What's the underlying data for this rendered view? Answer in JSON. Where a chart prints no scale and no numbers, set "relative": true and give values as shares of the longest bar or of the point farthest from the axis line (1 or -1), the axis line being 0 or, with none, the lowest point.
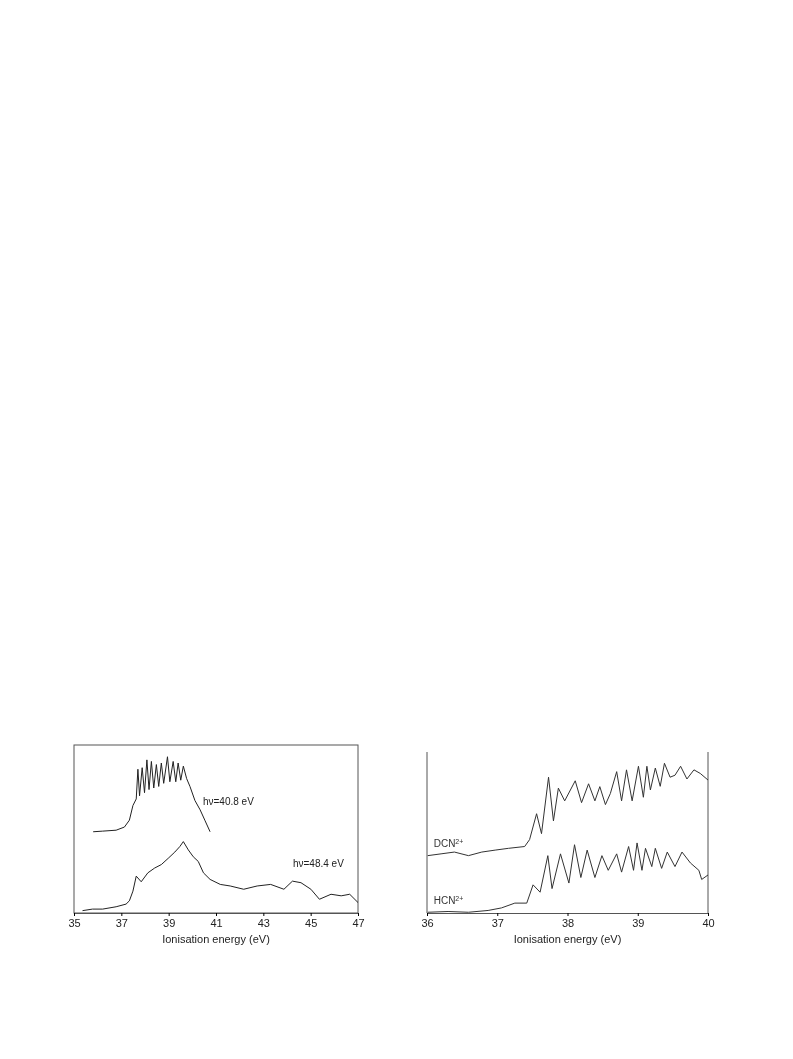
{
  "chart_data": [
    {
      "type": "line",
      "relative": true,
      "xlabel": "Ionisation energy (eV)",
      "xlim": [
        35,
        47
      ],
      "xticks": [
        35,
        37,
        39,
        41,
        43,
        45,
        47
      ],
      "grid": false,
      "legend": false,
      "line_style": "solid",
      "marker": "none",
      "series": [
        {
          "name": "hν=40.8 eV",
          "color": "#222222",
          "x": [
            35.81,
            36.21,
            36.78,
            37.13,
            37.34,
            37.49,
            37.63,
            37.7,
            37.77,
            37.88,
            37.98,
            38.08,
            38.17,
            38.27,
            38.37,
            38.48,
            38.58,
            38.69,
            38.79,
            38.95,
            39.05,
            39.19,
            39.3,
            39.4,
            39.51,
            39.62,
            39.76,
            39.9,
            40.11,
            40.33,
            40.54,
            40.75
          ],
          "values": [
            0.52,
            0.524,
            0.53,
            0.55,
            0.594,
            0.688,
            0.73,
            0.92,
            0.75,
            0.93,
            0.77,
            0.98,
            0.79,
            0.97,
            0.8,
            0.95,
            0.81,
            0.96,
            0.83,
            1.0,
            0.84,
            0.97,
            0.84,
            0.96,
            0.85,
            0.94,
            0.86,
            0.81,
            0.72,
            0.66,
            0.59,
            0.52
          ]
        },
        {
          "name": "hν=48.4 eV",
          "color": "#222222",
          "x": [
            35.36,
            35.78,
            36.21,
            36.78,
            37.2,
            37.34,
            37.49,
            37.63,
            37.84,
            38.12,
            38.41,
            38.69,
            38.98,
            39.26,
            39.47,
            39.62,
            39.83,
            40.04,
            40.25,
            40.47,
            40.75,
            41.18,
            41.6,
            42.17,
            42.74,
            43.31,
            43.87,
            44.23,
            44.59,
            45.01,
            45.37,
            45.86,
            46.29,
            46.65,
            47.0
          ],
          "values": [
            0.015,
            0.025,
            0.025,
            0.04,
            0.057,
            0.078,
            0.14,
            0.236,
            0.2,
            0.257,
            0.288,
            0.31,
            0.35,
            0.39,
            0.425,
            0.457,
            0.404,
            0.36,
            0.33,
            0.257,
            0.215,
            0.183,
            0.173,
            0.152,
            0.173,
            0.183,
            0.152,
            0.204,
            0.194,
            0.152,
            0.088,
            0.12,
            0.11,
            0.12,
            0.067
          ]
        }
      ]
    },
    {
      "type": "line",
      "relative": true,
      "xlabel": "Ionisation energy (eV)",
      "xlim": [
        36,
        40
      ],
      "xticks": [
        36,
        37,
        38,
        39,
        40
      ],
      "grid": false,
      "legend": false,
      "line_style": "solid",
      "marker": "none",
      "series": [
        {
          "name": "DCN$^{2+}$",
          "color": "#333333",
          "x": [
            36.01,
            36.2,
            36.39,
            36.59,
            36.78,
            36.97,
            37.16,
            37.39,
            37.46,
            37.56,
            37.63,
            37.73,
            37.8,
            37.87,
            37.96,
            38.11,
            38.2,
            38.3,
            38.39,
            38.46,
            38.54,
            38.61,
            38.7,
            38.77,
            38.84,
            38.92,
            39.01,
            39.08,
            39.13,
            39.18,
            39.25,
            39.32,
            39.38,
            39.46,
            39.53,
            39.61,
            39.7,
            39.8,
            39.89,
            40.0
          ],
          "values": [
            0.383,
            0.395,
            0.407,
            0.383,
            0.407,
            0.42,
            0.432,
            0.444,
            0.49,
            0.663,
            0.53,
            0.907,
            0.615,
            0.834,
            0.749,
            0.883,
            0.737,
            0.863,
            0.749,
            0.844,
            0.724,
            0.798,
            0.944,
            0.749,
            0.956,
            0.749,
            0.98,
            0.773,
            0.98,
            0.822,
            0.968,
            0.846,
            1.0,
            0.907,
            0.92,
            0.98,
            0.895,
            0.956,
            0.932,
            0.888
          ]
        },
        {
          "name": "HCN$^{2+}$",
          "color": "#333333",
          "x": [
            36.01,
            36.3,
            36.59,
            36.87,
            37.06,
            37.25,
            37.42,
            37.51,
            37.61,
            37.72,
            37.78,
            37.9,
            38.02,
            38.1,
            38.19,
            38.28,
            38.39,
            38.49,
            38.58,
            38.7,
            38.77,
            38.87,
            38.94,
            38.99,
            39.06,
            39.11,
            39.2,
            39.25,
            39.34,
            39.42,
            39.53,
            39.63,
            39.75,
            39.87,
            39.91,
            40.0
          ],
          "values": [
            0.005,
            0.01,
            0.005,
            0.017,
            0.034,
            0.066,
            0.066,
            0.188,
            0.139,
            0.383,
            0.163,
            0.395,
            0.2,
            0.456,
            0.237,
            0.42,
            0.237,
            0.383,
            0.285,
            0.395,
            0.273,
            0.444,
            0.285,
            0.468,
            0.285,
            0.432,
            0.31,
            0.432,
            0.298,
            0.407,
            0.31,
            0.407,
            0.334,
            0.285,
            0.224,
            0.254
          ]
        }
      ]
    }
  ]
}
